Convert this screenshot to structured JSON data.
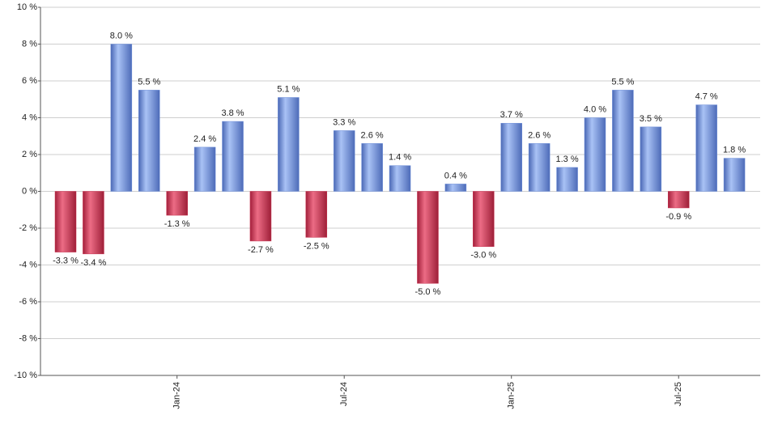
{
  "chart_data": {
    "type": "bar",
    "categories": [
      null,
      null,
      null,
      null,
      "Jan-24",
      null,
      null,
      null,
      null,
      null,
      "Jul-24",
      null,
      null,
      null,
      null,
      null,
      "Jan-25",
      null,
      null,
      null,
      null,
      null,
      "Jul-25",
      null,
      null
    ],
    "values": [
      -3.3,
      -3.4,
      8.0,
      5.5,
      -1.3,
      2.4,
      3.8,
      -2.7,
      5.1,
      -2.5,
      3.3,
      2.6,
      1.4,
      -5.0,
      0.4,
      -3.0,
      3.7,
      2.6,
      1.3,
      4.0,
      5.5,
      3.5,
      -0.9,
      4.7,
      1.8
    ],
    "value_labels": [
      "-3.3 %",
      "-3.4 %",
      "8.0 %",
      "5.5 %",
      "-1.3 %",
      "2.4 %",
      "3.8 %",
      "-2.7 %",
      "5.1 %",
      "-2.5 %",
      "3.3 %",
      "2.6 %",
      "1.4 %",
      "-5.0 %",
      "0.4 %",
      "-3.0 %",
      "3.7 %",
      "2.6 %",
      "1.3 %",
      "4.0 %",
      "5.5 %",
      "3.5 %",
      "-0.9 %",
      "4.7 %",
      "1.8 %"
    ],
    "positive_color": "#6e8fd9",
    "negative_color": "#c9314f",
    "ylim": [
      -10,
      10
    ],
    "yticks": [
      {
        "value": -10,
        "label": "-10 %"
      },
      {
        "value": -8,
        "label": "-8 %"
      },
      {
        "value": -6,
        "label": "-6 %"
      },
      {
        "value": -4,
        "label": "-4 %"
      },
      {
        "value": -2,
        "label": "-2 %"
      },
      {
        "value": 0,
        "label": "0 %"
      },
      {
        "value": 2,
        "label": "2 %"
      },
      {
        "value": 4,
        "label": "4 %"
      },
      {
        "value": 6,
        "label": "6 %"
      },
      {
        "value": 8,
        "label": "8 %"
      },
      {
        "value": 10,
        "label": "10 %"
      }
    ],
    "grid": true
  }
}
